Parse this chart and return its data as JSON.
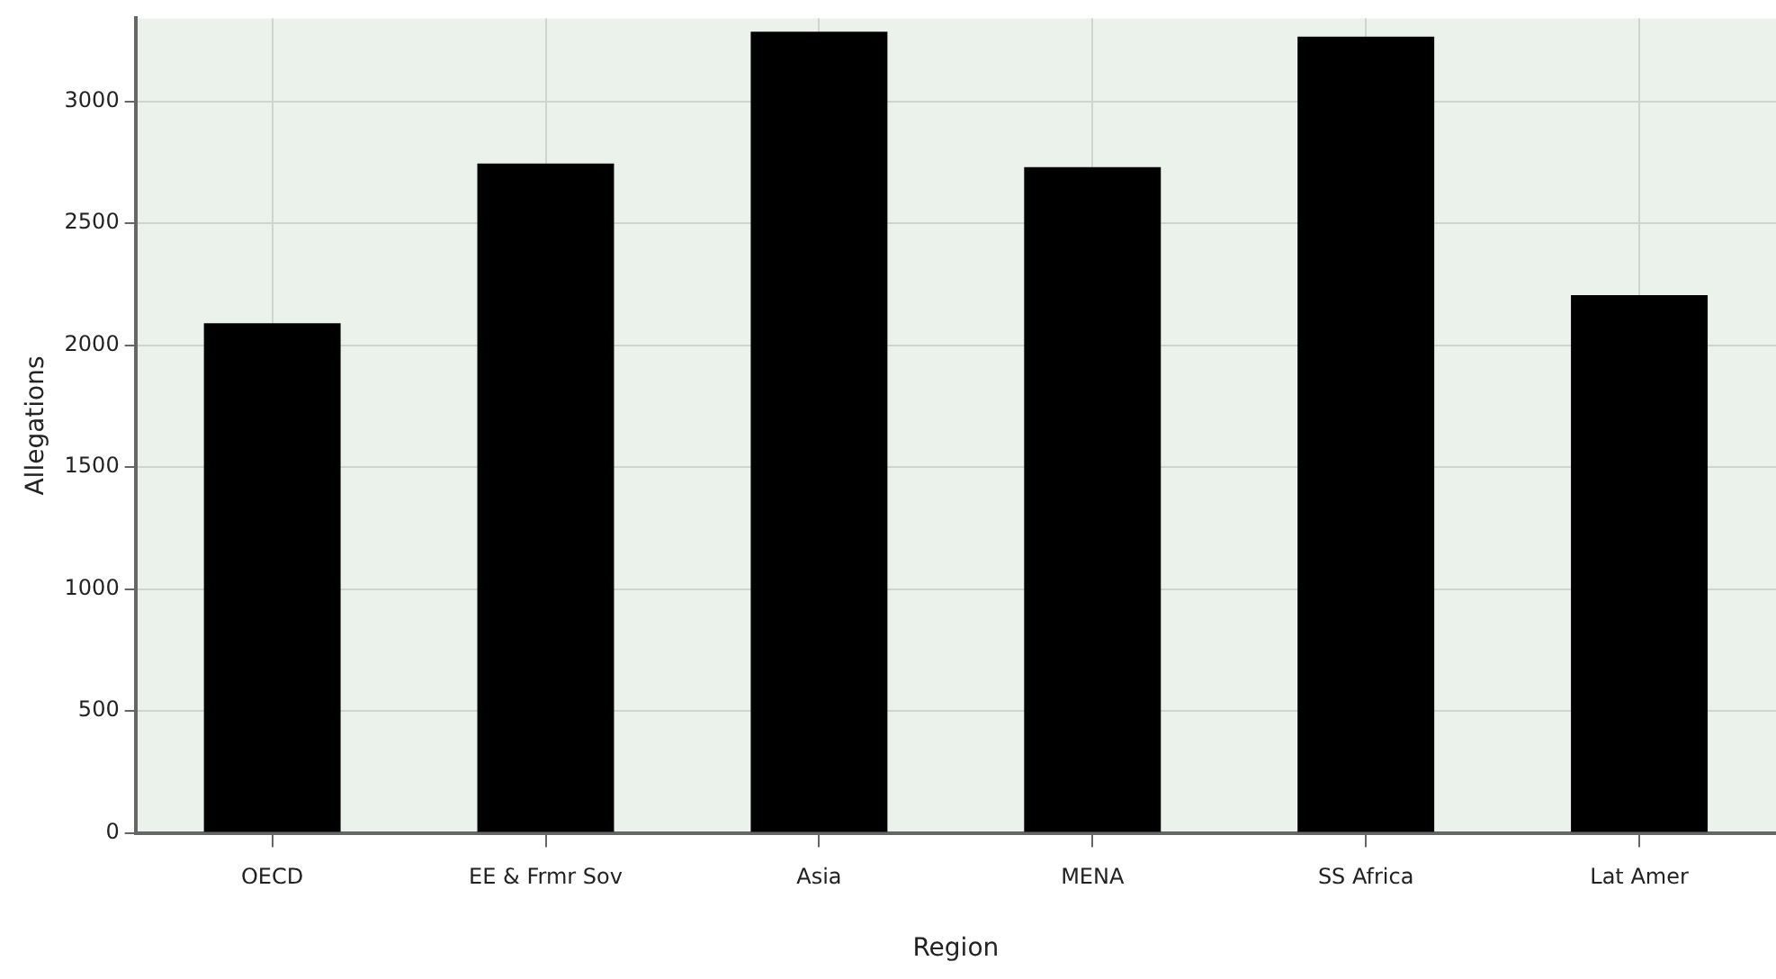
{
  "chart_data": {
    "type": "bar",
    "xlabel": "Region",
    "ylabel": "Allegations",
    "categories": [
      "OECD",
      "EE & Frmr Sov",
      "Asia",
      "MENA",
      "SS Africa",
      "Lat Amer"
    ],
    "values": [
      2090,
      2745,
      3285,
      2730,
      3265,
      2205
    ],
    "color": "#000000",
    "ylim": [
      0,
      3340
    ],
    "yticks": [
      0,
      500,
      1000,
      1500,
      2000,
      2500,
      3000
    ],
    "grid": true,
    "legend": false
  }
}
